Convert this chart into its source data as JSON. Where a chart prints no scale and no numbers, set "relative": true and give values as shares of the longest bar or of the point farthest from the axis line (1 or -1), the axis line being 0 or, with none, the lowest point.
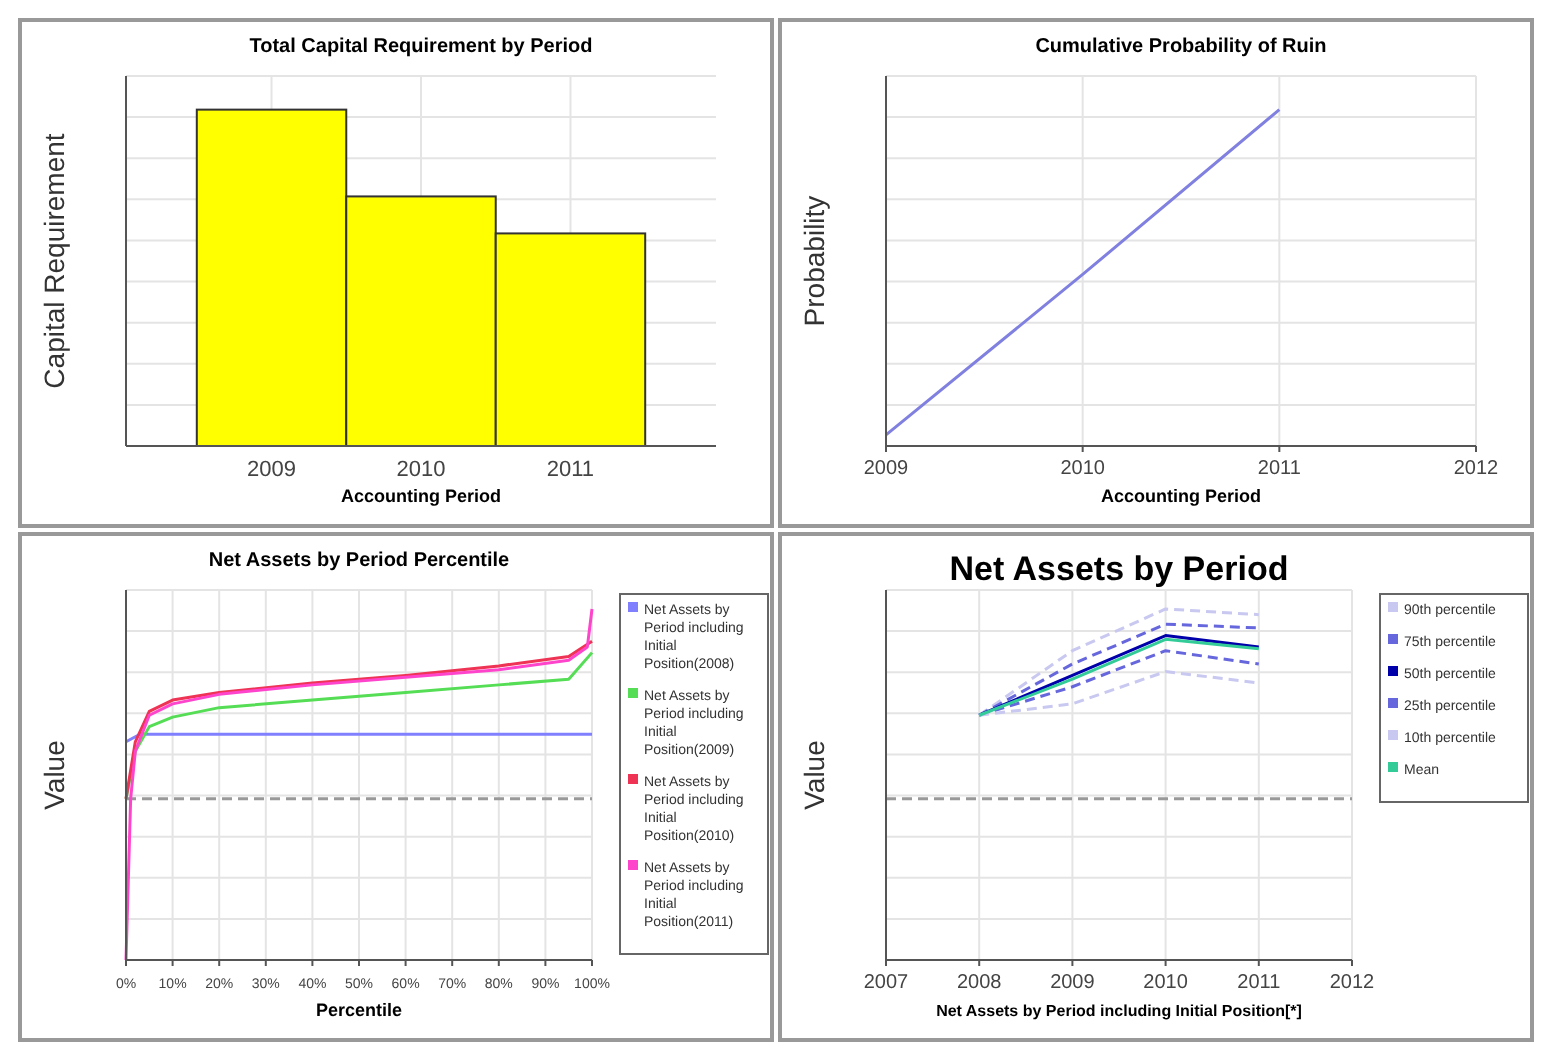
{
  "chart_data": [
    {
      "type": "bar",
      "title": "Total Capital Requirement by Period",
      "xlabel": "Accounting Period",
      "ylabel": "Capital Requirement",
      "categories": [
        "2009",
        "2010",
        "2011"
      ],
      "values": [
        1,
        0.742,
        0.632
      ],
      "color": "#ffff00",
      "relative": true,
      "grid": true
    },
    {
      "type": "line",
      "title": "Cumulative Probability of Ruin",
      "xlabel": "Accounting Period",
      "ylabel": "Probability",
      "xlim": [
        2009,
        2012
      ],
      "xticks": [
        2009,
        2010,
        2011,
        2012
      ],
      "relative": true,
      "grid": true,
      "series": [
        {
          "color": "#8080e0",
          "x": [
            2009,
            2010,
            2011
          ],
          "values": [
            0.033,
            0.51,
            1
          ]
        }
      ]
    },
    {
      "type": "line",
      "title": "Net Assets by Period Percentile",
      "xlabel": "Percentile",
      "ylabel": "Value",
      "xlim": [
        0,
        100
      ],
      "xticks": [
        {
          "value": 0,
          "label": "0%"
        },
        {
          "value": 10,
          "label": "10%"
        },
        {
          "value": 20,
          "label": "20%"
        },
        {
          "value": 30,
          "label": "30%"
        },
        {
          "value": 40,
          "label": "40%"
        },
        {
          "value": 50,
          "label": "50%"
        },
        {
          "value": 60,
          "label": "60%"
        },
        {
          "value": 70,
          "label": "70%"
        },
        {
          "value": 80,
          "label": "80%"
        },
        {
          "value": 90,
          "label": "90%"
        },
        {
          "value": 100,
          "label": "100%"
        }
      ],
      "relative": true,
      "grid": true,
      "legend": "right",
      "ref_lines": [
        {
          "axis": "y",
          "value": 0,
          "color": "#999999",
          "line_style": "dashed"
        }
      ],
      "series": [
        {
          "name": "Net Assets by Period including Initial Position(2008)",
          "color": "#8080ff",
          "x": [
            0,
            3,
            100
          ],
          "values": [
            0.3,
            0.34,
            0.34
          ]
        },
        {
          "name": "Net Assets by Period including Initial Position(2009)",
          "color": "#55dd55",
          "x": [
            0,
            2,
            5,
            10,
            20,
            40,
            60,
            80,
            95,
            100
          ],
          "values": [
            0,
            0.25,
            0.38,
            0.43,
            0.48,
            0.52,
            0.56,
            0.6,
            0.63,
            0.77
          ]
        },
        {
          "name": "Net Assets by Period including Initial Position(2010)",
          "color": "#ee3355",
          "x": [
            0,
            2,
            5,
            10,
            20,
            40,
            60,
            80,
            95,
            100
          ],
          "values": [
            0,
            0.3,
            0.46,
            0.52,
            0.56,
            0.61,
            0.65,
            0.7,
            0.75,
            0.83
          ]
        },
        {
          "name": "Net Assets by Period including Initial Position(2011)",
          "color": "#ff44cc",
          "x": [
            0,
            1,
            2,
            5,
            10,
            20,
            40,
            60,
            80,
            95,
            99,
            100
          ],
          "values": [
            -0.85,
            0,
            0.25,
            0.44,
            0.5,
            0.55,
            0.6,
            0.64,
            0.68,
            0.73,
            0.8,
            1
          ]
        }
      ]
    },
    {
      "type": "line",
      "title": "Net Assets by Period",
      "xlabel": "Net Assets by Period including Initial Position[*]",
      "ylabel": "Value",
      "xlim": [
        2007,
        2012
      ],
      "xticks": [
        2007,
        2008,
        2009,
        2010,
        2011,
        2012
      ],
      "relative": true,
      "grid": true,
      "legend": "right",
      "ref_lines": [
        {
          "axis": "y",
          "value": 0,
          "color": "#999999",
          "line_style": "dashed"
        }
      ],
      "series": [
        {
          "name": "90th percentile",
          "color": "#c8c8f0",
          "line_style": "dashed",
          "x": [
            2008,
            2009,
            2010,
            2011
          ],
          "values": [
            0.44,
            0.78,
            1,
            0.97
          ]
        },
        {
          "name": "75th percentile",
          "color": "#6666dd",
          "line_style": "dashed",
          "x": [
            2008,
            2009,
            2010,
            2011
          ],
          "values": [
            0.44,
            0.71,
            0.92,
            0.9
          ]
        },
        {
          "name": "50th percentile",
          "color": "#0000aa",
          "line_style": "solid",
          "x": [
            2008,
            2009,
            2010,
            2011
          ],
          "values": [
            0.44,
            0.65,
            0.86,
            0.8
          ]
        },
        {
          "name": "25th percentile",
          "color": "#6666dd",
          "line_style": "dashed",
          "x": [
            2008,
            2009,
            2010,
            2011
          ],
          "values": [
            0.44,
            0.59,
            0.78,
            0.71
          ]
        },
        {
          "name": "10th percentile",
          "color": "#c8c8f0",
          "line_style": "dashed",
          "x": [
            2008,
            2009,
            2010,
            2011
          ],
          "values": [
            0.44,
            0.5,
            0.67,
            0.61
          ]
        },
        {
          "name": "Mean",
          "color": "#33cc99",
          "line_style": "solid",
          "x": [
            2008,
            2009,
            2010,
            2011
          ],
          "values": [
            0.44,
            0.63,
            0.84,
            0.79
          ]
        }
      ]
    }
  ]
}
